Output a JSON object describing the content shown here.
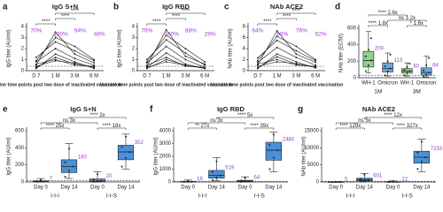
{
  "chart_data": [
    {
      "type": "line",
      "panel": "a",
      "title": "IgG S+N",
      "y_label": "IgG titer (AU/ml)",
      "x_label": "Vaccine time points post two dose of inactivated vaccination",
      "categories": [
        "D 7",
        "1 M",
        "3 M",
        "6 M"
      ],
      "ylim": [
        0,
        4
      ],
      "yticks": [
        0,
        1,
        2,
        3,
        4
      ],
      "cutoff": 0.4,
      "line_color": "#111111",
      "lines": [
        [
          0.3,
          1.2,
          0.6,
          0.3
        ],
        [
          0.8,
          2.0,
          1.1,
          0.5
        ],
        [
          0.5,
          3.5,
          1.5,
          0.7
        ],
        [
          1.2,
          2.6,
          1.8,
          0.9
        ],
        [
          0.2,
          1.5,
          0.8,
          0.2
        ],
        [
          0.6,
          1.0,
          0.5,
          0.4
        ],
        [
          0.9,
          3.0,
          2.2,
          1.0
        ],
        [
          0.4,
          0.9,
          0.7,
          0.3
        ]
      ],
      "percent_labels": [
        "70%",
        "100%",
        "94%",
        "48%"
      ],
      "annotations": [
        "****",
        "****",
        "****"
      ]
    },
    {
      "type": "line",
      "panel": "b",
      "title": "IgG RBD",
      "y_label": "IgG titer (AU/ml)",
      "x_label": "Vaccine time points post two dose of inactivated vaccination",
      "categories": [
        "D 7",
        "1 M",
        "3 M",
        "6 M"
      ],
      "ylim": [
        0,
        4
      ],
      "yticks": [
        0,
        1,
        2,
        3,
        4
      ],
      "cutoff": 0.4,
      "line_color": "#111111",
      "lines": [
        [
          0.2,
          1.0,
          0.5,
          0.2
        ],
        [
          0.7,
          2.2,
          1.0,
          0.3
        ],
        [
          0.4,
          3.7,
          1.3,
          0.6
        ],
        [
          1.0,
          2.8,
          1.6,
          0.5
        ],
        [
          0.3,
          1.6,
          0.6,
          0.2
        ],
        [
          0.5,
          1.2,
          0.4,
          0.3
        ],
        [
          0.8,
          3.2,
          2.0,
          0.8
        ],
        [
          0.3,
          0.8,
          0.5,
          0.2
        ]
      ],
      "percent_labels": [
        "76%",
        "100%",
        "88%",
        "29%"
      ],
      "annotations": [
        "****",
        "****",
        "****"
      ]
    },
    {
      "type": "line",
      "panel": "c",
      "title": "NAb ACE2",
      "y_label": "NAb titer (AU/ml)",
      "x_label": "Vaccine time points post two dose of inactivated vaccination",
      "categories": [
        "D 7",
        "1 M",
        "3 M",
        "6 M"
      ],
      "ylim": [
        0,
        8
      ],
      "yticks": [
        0,
        2,
        4,
        6,
        8
      ],
      "cutoff": 0.8,
      "line_color": "#111111",
      "lines": [
        [
          0.5,
          2.5,
          1.2,
          0.6
        ],
        [
          1.5,
          4.2,
          2.4,
          1.0
        ],
        [
          1.0,
          7.2,
          3.0,
          1.5
        ],
        [
          2.3,
          5.5,
          3.6,
          1.8
        ],
        [
          0.4,
          3.0,
          1.6,
          0.5
        ],
        [
          1.2,
          2.0,
          1.0,
          0.8
        ],
        [
          1.8,
          6.2,
          4.4,
          2.0
        ],
        [
          0.8,
          1.6,
          1.3,
          0.6
        ]
      ],
      "percent_labels": [
        "64%",
        "88%",
        "76%",
        "52%"
      ],
      "annotations": [
        "****",
        "****",
        "****"
      ]
    },
    {
      "type": "box",
      "panel": "d",
      "y_label": "NAb titer (EC50)",
      "categories": [
        "WH-1",
        "Omicron",
        "WH-1",
        "Omicron"
      ],
      "groups": [
        "1M",
        "3M"
      ],
      "ylim": [
        0,
        600
      ],
      "yticks": [
        0,
        200,
        400,
        600
      ],
      "cutoff": 30,
      "box_colors": [
        "#8fd18f",
        "#6fa8dc",
        "#8fd18f",
        "#6fa8dc"
      ],
      "values": [
        209,
        113,
        80,
        64
      ],
      "q1": [
        130,
        70,
        55,
        30
      ],
      "q3": [
        320,
        180,
        110,
        120
      ],
      "min": [
        60,
        20,
        20,
        10
      ],
      "max": [
        560,
        300,
        180,
        260
      ],
      "points": [
        [
          80,
          150,
          210,
          260,
          340,
          480
        ],
        [
          30,
          80,
          110,
          140,
          200,
          280
        ],
        [
          30,
          60,
          80,
          95,
          130,
          170
        ],
        [
          15,
          40,
          60,
          90,
          150,
          240
        ]
      ],
      "annotations": [
        "**** 2.6x",
        "**** 1.8x",
        "* 1.6x",
        "ns 1.2x"
      ]
    },
    {
      "type": "box",
      "panel": "e",
      "title": "IgG S+N",
      "y_label": "IgG titer (AU/ml)",
      "categories": [
        "Day 0",
        "Day 14",
        "Day 0",
        "Day 14"
      ],
      "groups": [
        "I-I-I",
        "I-I-S"
      ],
      "ylim": [
        0,
        600
      ],
      "yticks": [
        0,
        200,
        400,
        600
      ],
      "cutoff": 15,
      "box_colors": [
        "#9dc3e6",
        "#4a90d9",
        "#9dc3e6",
        "#4a90d9"
      ],
      "values": [
        7,
        180,
        20,
        352
      ],
      "q1": [
        3,
        110,
        8,
        260
      ],
      "q3": [
        12,
        260,
        35,
        430
      ],
      "min": [
        0,
        40,
        0,
        150
      ],
      "max": [
        40,
        450,
        120,
        560
      ],
      "points": [
        [
          1,
          4,
          7,
          10,
          25
        ],
        [
          60,
          130,
          180,
          230,
          390
        ],
        [
          2,
          10,
          20,
          30,
          90
        ],
        [
          180,
          280,
          350,
          410,
          530
        ]
      ],
      "annotations": [
        "**** 25x",
        "ns 3x",
        "**** 18x",
        "**** 2x"
      ]
    },
    {
      "type": "box",
      "panel": "f",
      "title": "IgG RBD",
      "y_label": "IgG titer (AU/ml)",
      "categories": [
        "Day 0",
        "Day 14",
        "Day 0",
        "Day 14"
      ],
      "groups": [
        "I-I-I",
        "I-I-S"
      ],
      "ylim": [
        0,
        4000
      ],
      "yticks": [
        0,
        1000,
        2000,
        3000,
        4000
      ],
      "cutoff": 60,
      "box_colors": [
        "#9dc3e6",
        "#4a90d9",
        "#9dc3e6",
        "#4a90d9"
      ],
      "values": [
        19,
        519,
        64,
        2480
      ],
      "q1": [
        8,
        300,
        25,
        1700
      ],
      "q3": [
        40,
        900,
        130,
        3100
      ],
      "min": [
        0,
        100,
        0,
        800
      ],
      "max": [
        150,
        1900,
        400,
        3900
      ],
      "points": [
        [
          5,
          12,
          19,
          30,
          110
        ],
        [
          150,
          350,
          520,
          800,
          1600
        ],
        [
          10,
          40,
          64,
          110,
          330
        ],
        [
          1000,
          1900,
          2480,
          2900,
          3700
        ]
      ],
      "annotations": [
        "** 27x",
        "ns 3x",
        "**** 39x",
        "**** 5x"
      ]
    },
    {
      "type": "box",
      "panel": "g",
      "title": "NAb ACE2",
      "y_label": "NAb titer (AU/ml)",
      "categories": [
        "Day 0",
        "Day 14",
        "Day 0",
        "Day 14"
      ],
      "groups": [
        "I-I-I",
        "I-I-S"
      ],
      "ylim": [
        0,
        15000
      ],
      "yticks": [
        0,
        5000,
        10000,
        15000
      ],
      "cutoff": 200,
      "box_colors": [
        "#9dc3e6",
        "#4a90d9",
        "#9dc3e6",
        "#4a90d9"
      ],
      "values": [
        5,
        601,
        22,
        7233
      ],
      "q1": [
        2,
        350,
        10,
        5500
      ],
      "q3": [
        10,
        1100,
        50,
        9000
      ],
      "min": [
        0,
        100,
        0,
        3000
      ],
      "max": [
        60,
        2500,
        300,
        12500
      ],
      "points": [
        [
          1,
          3,
          5,
          8,
          40
        ],
        [
          150,
          400,
          600,
          900,
          2100
        ],
        [
          4,
          12,
          22,
          40,
          250
        ],
        [
          3800,
          6000,
          7200,
          8600,
          11800
        ]
      ],
      "annotations": [
        "**** 129x",
        "ns 5x",
        "**** 327x",
        "**** 12x"
      ]
    }
  ]
}
